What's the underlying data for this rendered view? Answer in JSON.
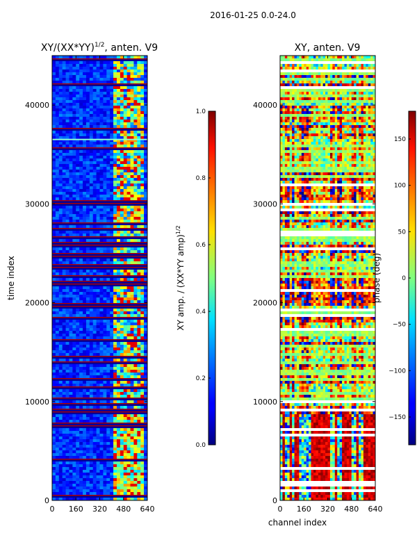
{
  "suptitle": "2016-01-25 0.0-24.0",
  "chart_data": [
    {
      "type": "heatmap",
      "title": "XY/(XX*YY)",
      "title_exponent": "1/2",
      "title_suffix": ", anten. V9",
      "xlabel": "",
      "ylabel": "time index",
      "xlim": [
        0,
        640
      ],
      "ylim": [
        0,
        45000
      ],
      "xticks": [
        0,
        160,
        320,
        480,
        640
      ],
      "yticks": [
        0,
        10000,
        20000,
        30000,
        40000
      ],
      "colorbar": {
        "label": "XY amp. / (XX*YY amp)",
        "label_exponent": "1/2",
        "range": [
          0.0,
          1.0
        ],
        "ticks": [
          "0.0",
          "0.2",
          "0.4",
          "0.6",
          "0.8",
          "1.0"
        ]
      },
      "colormap": "jet"
    },
    {
      "type": "heatmap",
      "title": "XY, anten. V9",
      "xlabel": "channel index",
      "ylabel": "",
      "xlim": [
        0,
        640
      ],
      "ylim": [
        0,
        45000
      ],
      "xticks": [
        0,
        160,
        320,
        480,
        640
      ],
      "yticks": [
        0,
        10000,
        20000,
        30000,
        40000
      ],
      "colorbar": {
        "label": "phase (deg)",
        "range": [
          -180,
          180
        ],
        "ticks": [
          "−150",
          "−100",
          "−50",
          "0",
          "50",
          "100",
          "150"
        ]
      },
      "colormap": "jet"
    }
  ]
}
